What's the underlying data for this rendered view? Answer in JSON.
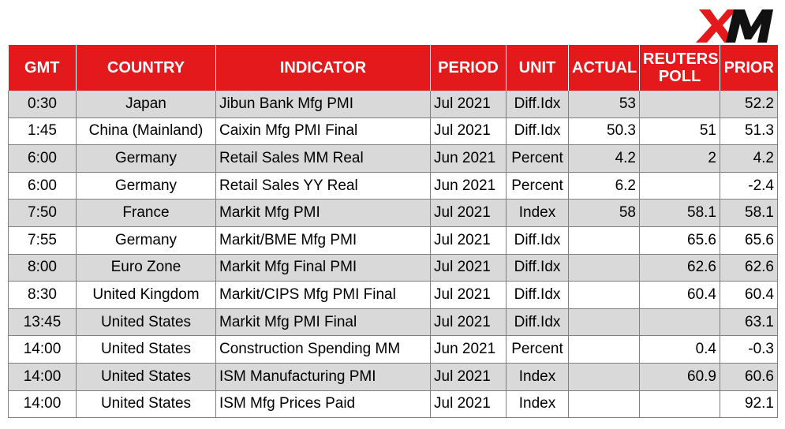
{
  "brand": {
    "logo_text": "XM",
    "colors": {
      "header_bg": "#e3191c",
      "header_text": "#ffffff",
      "shade_row": "#d9d9d9",
      "grid": "#7f7f7f"
    }
  },
  "table": {
    "headers": {
      "gmt": "GMT",
      "country": "COUNTRY",
      "indicator": "INDICATOR",
      "period": "PERIOD",
      "unit": "UNIT",
      "actual": "ACTUAL",
      "poll_line1": "REUTERS",
      "poll_line2": "POLL",
      "prior": "PRIOR"
    },
    "rows": [
      {
        "gmt": "0:30",
        "country": "Japan",
        "indicator": "Jibun Bank Mfg PMI",
        "period": "Jul 2021",
        "unit": "Diff.Idx",
        "actual": "53",
        "poll": "",
        "prior": "52.2"
      },
      {
        "gmt": "1:45",
        "country": "China (Mainland)",
        "indicator": "Caixin Mfg PMI Final",
        "period": "Jul 2021",
        "unit": "Diff.Idx",
        "actual": "50.3",
        "poll": "51",
        "prior": "51.3"
      },
      {
        "gmt": "6:00",
        "country": "Germany",
        "indicator": "Retail Sales MM Real",
        "period": "Jun 2021",
        "unit": "Percent",
        "actual": "4.2",
        "poll": "2",
        "prior": "4.2"
      },
      {
        "gmt": "6:00",
        "country": "Germany",
        "indicator": "Retail Sales YY Real",
        "period": "Jun 2021",
        "unit": "Percent",
        "actual": "6.2",
        "poll": "",
        "prior": "-2.4"
      },
      {
        "gmt": "7:50",
        "country": "France",
        "indicator": "Markit Mfg PMI",
        "period": "Jul 2021",
        "unit": "Index",
        "actual": "58",
        "poll": "58.1",
        "prior": "58.1"
      },
      {
        "gmt": "7:55",
        "country": "Germany",
        "indicator": "Markit/BME Mfg PMI",
        "period": "Jul 2021",
        "unit": "Diff.Idx",
        "actual": "",
        "poll": "65.6",
        "prior": "65.6"
      },
      {
        "gmt": "8:00",
        "country": "Euro Zone",
        "indicator": "Markit Mfg Final PMI",
        "period": "Jul 2021",
        "unit": "Diff.Idx",
        "actual": "",
        "poll": "62.6",
        "prior": "62.6"
      },
      {
        "gmt": "8:30",
        "country": "United Kingdom",
        "indicator": "Markit/CIPS Mfg PMI Final",
        "period": "Jul 2021",
        "unit": "Diff.Idx",
        "actual": "",
        "poll": "60.4",
        "prior": "60.4"
      },
      {
        "gmt": "13:45",
        "country": "United States",
        "indicator": "Markit Mfg PMI Final",
        "period": "Jul 2021",
        "unit": "Diff.Idx",
        "actual": "",
        "poll": "",
        "prior": "63.1"
      },
      {
        "gmt": "14:00",
        "country": "United States",
        "indicator": "Construction Spending MM",
        "period": "Jun 2021",
        "unit": "Percent",
        "actual": "",
        "poll": "0.4",
        "prior": "-0.3"
      },
      {
        "gmt": "14:00",
        "country": "United States",
        "indicator": "ISM Manufacturing PMI",
        "period": "Jul 2021",
        "unit": "Index",
        "actual": "",
        "poll": "60.9",
        "prior": "60.6"
      },
      {
        "gmt": "14:00",
        "country": "United States",
        "indicator": "ISM Mfg Prices Paid",
        "period": "Jul 2021",
        "unit": "Index",
        "actual": "",
        "poll": "",
        "prior": "92.1"
      }
    ]
  }
}
